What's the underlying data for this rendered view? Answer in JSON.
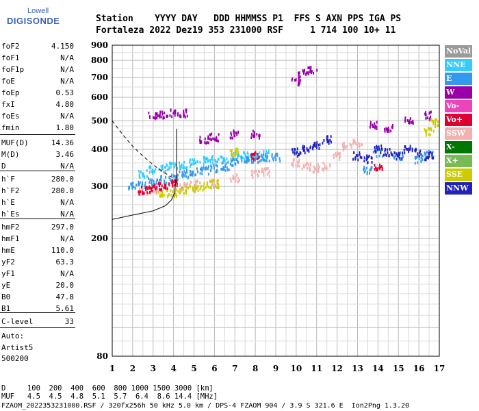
{
  "logo": {
    "line1": "Lowell",
    "line2": "DIGISONDE"
  },
  "header": {
    "labels": "Station    YYYY DAY   DDD HHMMSS P1  FFS S AXN PPS IGA PS",
    "values": "Fortaleza 2022 Dez19 353 231000 RSF     1 714 100 10+ 11"
  },
  "params": [
    {
      "label": "foF2",
      "value": "4.150"
    },
    {
      "label": "foF1",
      "value": "N/A"
    },
    {
      "label": "foF1p",
      "value": "N/A"
    },
    {
      "label": "foE",
      "value": "N/A"
    },
    {
      "label": "foEp",
      "value": "0.53"
    },
    {
      "label": "fxI",
      "value": "4.80"
    },
    {
      "label": "foEs",
      "value": "N/A"
    },
    {
      "label": "fmin",
      "value": "1.80"
    },
    {
      "label": "MUF(D)",
      "value": "14.36"
    },
    {
      "label": "M(D)",
      "value": "3.46"
    },
    {
      "label": "D",
      "value": "N/A"
    },
    {
      "label": "h`F",
      "value": "280.0"
    },
    {
      "label": "h`F2",
      "value": "280.0"
    },
    {
      "label": "h`E",
      "value": "N/A"
    },
    {
      "label": "h`Es",
      "value": "N/A"
    },
    {
      "label": "hmF2",
      "value": "297.0"
    },
    {
      "label": "hmF1",
      "value": "N/A"
    },
    {
      "label": "hmE",
      "value": "110.0"
    },
    {
      "label": "yF2",
      "value": "63.3"
    },
    {
      "label": "yF1",
      "value": "N/A"
    },
    {
      "label": "yE",
      "value": "20.0"
    },
    {
      "label": "B0",
      "value": "47.8"
    },
    {
      "label": "B1",
      "value": "5.61"
    },
    {
      "label": "C-level",
      "value": "33"
    }
  ],
  "autoscale": {
    "line1": "Auto:",
    "line2": "Artist5",
    "line3": "500200"
  },
  "legend": [
    {
      "label": "NoVal",
      "color": "#9a9a9a"
    },
    {
      "label": "NNE",
      "color": "#33ccff"
    },
    {
      "label": "E",
      "color": "#3399ee"
    },
    {
      "label": "W",
      "color": "#9900aa"
    },
    {
      "label": "Vo-",
      "color": "#ee44bb"
    },
    {
      "label": "Vo+",
      "color": "#dd0033"
    },
    {
      "label": "SSW",
      "color": "#f4b0b0"
    },
    {
      "label": "X-",
      "color": "#007700"
    },
    {
      "label": "X+",
      "color": "#77bb55"
    },
    {
      "label": "SSE",
      "color": "#cccc00"
    },
    {
      "label": "NNW",
      "color": "#2222bb"
    }
  ],
  "footer": {
    "d_row": "D     100  200  400  600  800 1000 1500 3000 [km]",
    "muf_row": "MUF   4.5  4.5  4.8  5.1  5.7  6.4  8.6 14.4 [MHz]",
    "file_row": "FZAOM_2022353231000.RSF / 320fx256h 50 kHz 5.0 km / DPS-4 FZAOM 904 / 3.9 S 321.6 E  Ion2Png 1.3.20"
  },
  "chart_data": {
    "type": "scatter",
    "xlim": [
      1,
      17
    ],
    "ylim": [
      80,
      900
    ],
    "x_ticks": [
      1,
      2,
      3,
      4,
      5,
      6,
      7,
      8,
      9,
      10,
      11,
      12,
      13,
      14,
      15,
      16,
      17
    ],
    "y_ticks": [
      80,
      200,
      300,
      400,
      500,
      600,
      700,
      800,
      900
    ],
    "grid": true,
    "y_scale": "log",
    "series": [
      {
        "label": "NNE",
        "points": [
          [
            2.5,
            330
          ],
          [
            3,
            340
          ],
          [
            3.5,
            345
          ],
          [
            4,
            350
          ],
          [
            4.5,
            355
          ],
          [
            5,
            360
          ],
          [
            5.5,
            365
          ],
          [
            6,
            370
          ],
          [
            6.5,
            372
          ],
          [
            7,
            378
          ],
          [
            7.5,
            380
          ],
          [
            8,
            382
          ],
          [
            8.5,
            384
          ]
        ]
      },
      {
        "label": "E",
        "points": [
          [
            2,
            300
          ],
          [
            2.5,
            305
          ],
          [
            3,
            310
          ],
          [
            3.5,
            315
          ],
          [
            4,
            320
          ],
          [
            4.5,
            330
          ],
          [
            5,
            335
          ],
          [
            5.5,
            340
          ],
          [
            6,
            345
          ],
          [
            6.5,
            350
          ],
          [
            7,
            360
          ],
          [
            7.5,
            370
          ],
          [
            8,
            372
          ],
          [
            8.5,
            374
          ],
          [
            9,
            376
          ],
          [
            13.5,
            340
          ],
          [
            14,
            390
          ],
          [
            15,
            380
          ],
          [
            16,
            370
          ],
          [
            16.5,
            385
          ]
        ]
      },
      {
        "label": "W",
        "points": [
          [
            3,
            520
          ],
          [
            3.5,
            525
          ],
          [
            4,
            530
          ],
          [
            4.5,
            530
          ],
          [
            10,
            680
          ],
          [
            10.3,
            720
          ],
          [
            10.8,
            740
          ],
          [
            5.5,
            430
          ],
          [
            6,
            440
          ],
          [
            7,
            450
          ],
          [
            8,
            450
          ],
          [
            13.8,
            480
          ],
          [
            14.5,
            470
          ],
          [
            15.5,
            500
          ],
          [
            16.5,
            520
          ]
        ]
      },
      {
        "label": "SSW",
        "points": [
          [
            2.5,
            290
          ],
          [
            3,
            292
          ],
          [
            4.5,
            300
          ],
          [
            5,
            305
          ],
          [
            6,
            310
          ],
          [
            7,
            320
          ],
          [
            8,
            330
          ],
          [
            8.5,
            335
          ],
          [
            10,
            360
          ],
          [
            10.5,
            350
          ],
          [
            11,
            345
          ],
          [
            11.5,
            350
          ],
          [
            12,
            380
          ],
          [
            12.5,
            410
          ],
          [
            13,
            420
          ]
        ]
      },
      {
        "label": "SSE",
        "points": [
          [
            3.5,
            285
          ],
          [
            4,
            285
          ],
          [
            4.5,
            290
          ],
          [
            5,
            295
          ],
          [
            5.5,
            300
          ],
          [
            6,
            305
          ],
          [
            7,
            390
          ],
          [
            16.5,
            460
          ],
          [
            16.8,
            490
          ]
        ]
      },
      {
        "label": "NNW",
        "points": [
          [
            10,
            390
          ],
          [
            10.5,
            400
          ],
          [
            11,
            410
          ],
          [
            11.5,
            430
          ],
          [
            13,
            380
          ],
          [
            13.5,
            370
          ],
          [
            14,
            400
          ],
          [
            14.5,
            390
          ],
          [
            15,
            380
          ],
          [
            15.5,
            400
          ],
          [
            16,
            390
          ],
          [
            16.5,
            380
          ]
        ]
      },
      {
        "label": "Vo+",
        "points": [
          [
            2.5,
            290
          ],
          [
            3,
            295
          ],
          [
            3.5,
            300
          ],
          [
            4,
            305
          ],
          [
            8,
            380
          ],
          [
            14,
            350
          ]
        ]
      }
    ],
    "curves": [
      {
        "name": "true-height",
        "style": "solid",
        "points": [
          [
            1,
            232
          ],
          [
            2,
            240
          ],
          [
            3,
            248
          ],
          [
            3.6,
            258
          ],
          [
            3.9,
            270
          ],
          [
            4.05,
            285
          ],
          [
            4.15,
            330
          ],
          [
            4.15,
            470
          ]
        ]
      },
      {
        "name": "model",
        "style": "dashed",
        "points": [
          [
            1,
            500
          ],
          [
            1.5,
            450
          ],
          [
            2,
            410
          ],
          [
            2.5,
            380
          ],
          [
            3,
            355
          ],
          [
            3.5,
            335
          ],
          [
            4,
            320
          ],
          [
            4.15,
            310
          ]
        ]
      }
    ]
  }
}
